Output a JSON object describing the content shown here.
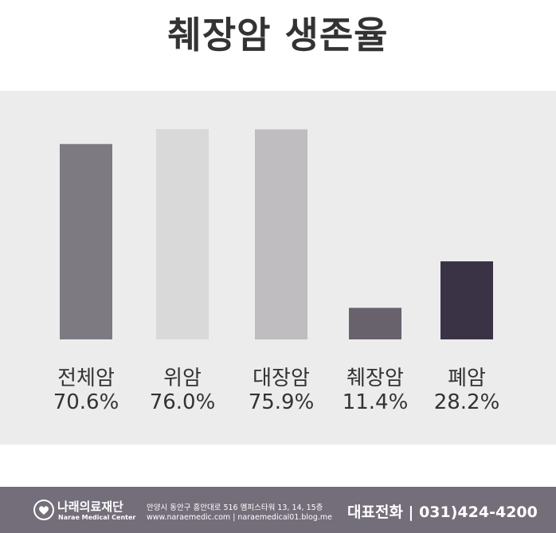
{
  "chart_data": {
    "type": "bar",
    "title": "췌장암 생존율",
    "categories": [
      "전체암",
      "위암",
      "대장암",
      "췌장암",
      "폐암"
    ],
    "values": [
      70.6,
      76.0,
      75.9,
      11.4,
      28.2
    ],
    "value_labels": [
      "70.6%",
      "76.0%",
      "75.9%",
      "11.4%",
      "28.2%"
    ],
    "colors": [
      "#7e7a82",
      "#d9d9da",
      "#bfbdc0",
      "#68626d",
      "#3a3346"
    ],
    "ylim": [
      0,
      100
    ],
    "grid": false,
    "legend": "none"
  },
  "footer": {
    "org_name": "나래의료재단",
    "org_name_en": "Narae Medical Center",
    "logo_icon": "heart-logo-icon",
    "address": "안양시 동안구 흥안대로 516 멤피스타워 13, 14, 15층",
    "website": "www.naraemedic.com | naraemedical01.blog.me",
    "phone": "대표전화 | 031)424-4200"
  }
}
